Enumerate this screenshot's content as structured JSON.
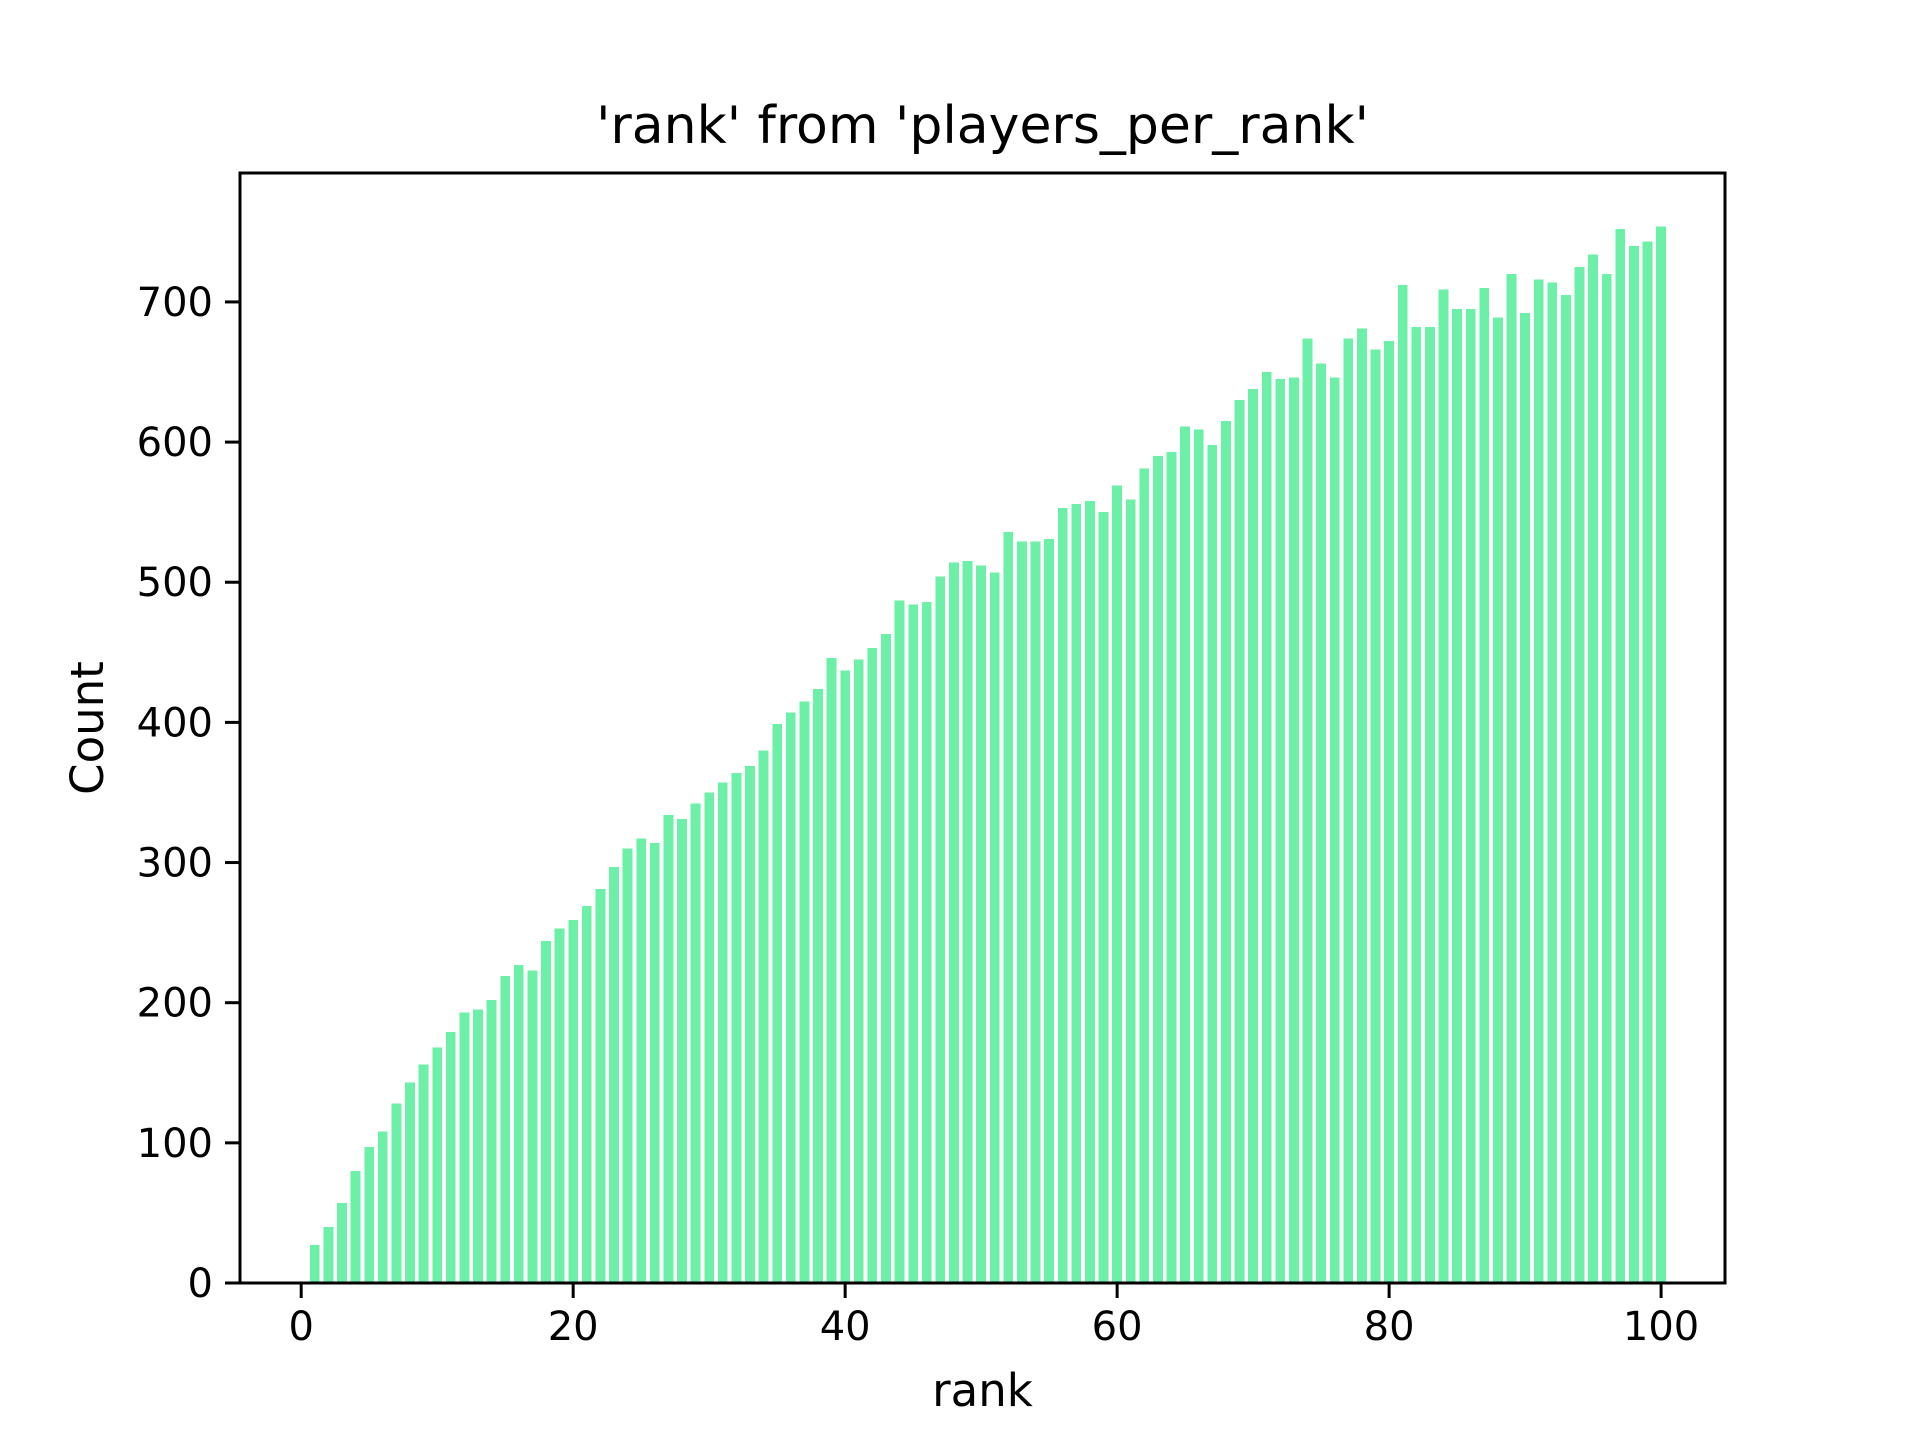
{
  "figure": {
    "background_color": "#ffffff",
    "text_color": "#000000"
  },
  "chart_data": {
    "type": "bar",
    "title": "'rank' from 'players_per_rank'",
    "xlabel": "rank",
    "ylabel": "Count",
    "rank_of_first_bar": 1,
    "values": [
      27,
      40,
      57,
      80,
      97,
      108,
      128,
      143,
      156,
      168,
      179,
      193,
      195,
      202,
      219,
      227,
      223,
      244,
      253,
      259,
      269,
      281,
      297,
      310,
      317,
      314,
      334,
      331,
      342,
      350,
      357,
      364,
      369,
      380,
      399,
      407,
      415,
      424,
      446,
      437,
      445,
      453,
      463,
      487,
      484,
      486,
      504,
      514,
      515,
      512,
      507,
      536,
      529,
      529,
      531,
      553,
      556,
      558,
      550,
      569,
      559,
      581,
      590,
      593,
      611,
      609,
      598,
      615,
      630,
      638,
      650,
      645,
      646,
      674,
      656,
      646,
      674,
      681,
      666,
      672,
      712,
      682,
      682,
      709,
      695,
      695,
      710,
      689,
      720,
      692,
      716,
      714,
      705,
      725,
      734,
      720,
      752,
      740,
      743,
      754
    ],
    "xticks": [
      0,
      20,
      40,
      60,
      80,
      100
    ],
    "yticks": [
      0,
      100,
      200,
      300,
      400,
      500,
      600,
      700
    ],
    "xlim": [
      -4.5,
      104.7
    ],
    "ylim": [
      0,
      792
    ],
    "bar_color": "#6cefa6",
    "bar_width_data_units": 0.72,
    "grid": false,
    "legend": "none",
    "frame": "full-box"
  }
}
